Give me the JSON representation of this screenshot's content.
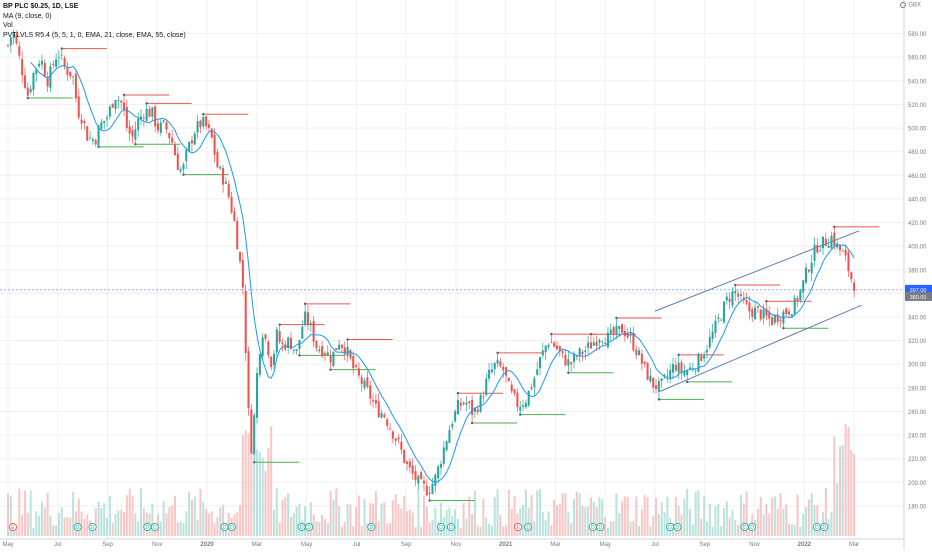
{
  "legend": {
    "title": "BP PLC $0.25, 1D, LSE",
    "ma": "MA (9, close, 0)",
    "vol": "Vol",
    "pvt": "PVTLVLS R5.4 (5, 5, 1, 0, EMA, 21, close, EMA, 55, close)"
  },
  "currency": "GBX",
  "colors": {
    "up": "#26a69a",
    "down": "#ef5350",
    "ma": "#2196f3",
    "level_high": "#ef5350",
    "level_low": "#4caf50",
    "trendline": "#5b7db8",
    "grid": "#eef0f3",
    "axis_text": "#787b86"
  },
  "price_labels": [
    "397.00",
    "380.00"
  ],
  "chart_data": {
    "type": "line",
    "title": "BP PLC $0.25, 1D, LSE",
    "xlabel": "",
    "ylabel": "",
    "ylim": [
      163,
      600
    ],
    "grid": true,
    "x_ticks": [
      "May",
      "Jul",
      "Sep",
      "Nov",
      "2020",
      "Mar",
      "May",
      "Jul",
      "Sep",
      "Nov",
      "2021",
      "Mar",
      "May",
      "Jul",
      "Sep",
      "Nov",
      "2022",
      "Mar"
    ],
    "y_ticks": [
      180,
      200,
      220,
      240,
      260,
      280,
      300,
      320,
      340,
      360,
      380,
      400,
      420,
      440,
      460,
      480,
      500,
      520,
      540,
      560,
      580
    ],
    "x_months": [
      0,
      2,
      4,
      6,
      8,
      10,
      12,
      14,
      16,
      18,
      20,
      22,
      24,
      26,
      28,
      30,
      32,
      34
    ],
    "series": [
      {
        "values": [
          [
            0.0,
            570
          ],
          [
            0.2,
            583
          ],
          [
            0.5,
            555
          ],
          [
            0.8,
            528
          ],
          [
            1.0,
            545
          ],
          [
            1.3,
            560
          ],
          [
            1.6,
            540
          ],
          [
            1.8,
            553
          ],
          [
            2.0,
            565
          ],
          [
            2.3,
            550
          ],
          [
            2.6,
            545
          ],
          [
            2.8,
            515
          ],
          [
            3.0,
            508
          ],
          [
            3.2,
            492
          ],
          [
            3.5,
            490
          ],
          [
            3.7,
            502
          ],
          [
            4.0,
            510
          ],
          [
            4.3,
            528
          ],
          [
            4.6,
            520
          ],
          [
            4.8,
            498
          ],
          [
            5.0,
            492
          ],
          [
            5.2,
            505
          ],
          [
            5.5,
            515
          ],
          [
            5.8,
            512
          ],
          [
            6.0,
            500
          ],
          [
            6.3,
            502
          ],
          [
            6.6,
            488
          ],
          [
            6.8,
            470
          ],
          [
            7.0,
            462
          ],
          [
            7.2,
            480
          ],
          [
            7.5,
            498
          ],
          [
            7.8,
            505
          ],
          [
            8.0,
            500
          ],
          [
            8.2,
            490
          ],
          [
            8.4,
            468
          ],
          [
            8.7,
            455
          ],
          [
            8.9,
            440
          ],
          [
            9.1,
            420
          ],
          [
            9.3,
            390
          ],
          [
            9.5,
            355
          ],
          [
            9.6,
            275
          ],
          [
            9.7,
            250
          ],
          [
            9.8,
            225
          ],
          [
            10.0,
            290
          ],
          [
            10.2,
            330
          ],
          [
            10.4,
            318
          ],
          [
            10.6,
            300
          ],
          [
            10.8,
            325
          ],
          [
            11.0,
            315
          ],
          [
            11.3,
            320
          ],
          [
            11.6,
            310
          ],
          [
            11.9,
            340
          ],
          [
            12.1,
            335
          ],
          [
            12.4,
            315
          ],
          [
            12.7,
            312
          ],
          [
            13.0,
            305
          ],
          [
            13.3,
            320
          ],
          [
            13.6,
            312
          ],
          [
            13.9,
            295
          ],
          [
            14.2,
            285
          ],
          [
            14.5,
            275
          ],
          [
            14.8,
            262
          ],
          [
            15.1,
            258
          ],
          [
            15.4,
            245
          ],
          [
            15.7,
            232
          ],
          [
            16.0,
            215
          ],
          [
            16.3,
            205
          ],
          [
            16.6,
            197
          ],
          [
            16.9,
            193
          ],
          [
            17.2,
            205
          ],
          [
            17.5,
            228
          ],
          [
            17.8,
            250
          ],
          [
            18.1,
            265
          ],
          [
            18.4,
            268
          ],
          [
            18.7,
            258
          ],
          [
            19.0,
            270
          ],
          [
            19.3,
            290
          ],
          [
            19.6,
            300
          ],
          [
            19.9,
            295
          ],
          [
            20.2,
            275
          ],
          [
            20.5,
            265
          ],
          [
            20.8,
            270
          ],
          [
            21.1,
            285
          ],
          [
            21.4,
            305
          ],
          [
            21.7,
            320
          ],
          [
            22.0,
            315
          ],
          [
            22.3,
            305
          ],
          [
            22.6,
            300
          ],
          [
            22.9,
            308
          ],
          [
            23.2,
            312
          ],
          [
            23.5,
            318
          ],
          [
            23.8,
            325
          ],
          [
            24.1,
            322
          ],
          [
            24.4,
            326
          ],
          [
            24.7,
            330
          ],
          [
            25.0,
            322
          ],
          [
            25.3,
            310
          ],
          [
            25.6,
            295
          ],
          [
            25.9,
            283
          ],
          [
            26.2,
            280
          ],
          [
            26.5,
            290
          ],
          [
            26.8,
            300
          ],
          [
            27.1,
            293
          ],
          [
            27.4,
            296
          ],
          [
            27.7,
            302
          ],
          [
            28.0,
            312
          ],
          [
            28.3,
            325
          ],
          [
            28.6,
            340
          ],
          [
            28.9,
            355
          ],
          [
            29.2,
            362
          ],
          [
            29.5,
            352
          ],
          [
            29.8,
            345
          ],
          [
            30.1,
            345
          ],
          [
            30.4,
            340
          ],
          [
            30.7,
            337
          ],
          [
            31.0,
            342
          ],
          [
            31.3,
            345
          ],
          [
            31.6,
            350
          ],
          [
            31.9,
            365
          ],
          [
            32.2,
            385
          ],
          [
            32.5,
            400
          ],
          [
            32.8,
            403
          ],
          [
            33.1,
            408
          ],
          [
            33.3,
            400
          ],
          [
            33.6,
            392
          ],
          [
            33.9,
            372
          ],
          [
            34.0,
            368
          ]
        ]
      }
    ]
  }
}
